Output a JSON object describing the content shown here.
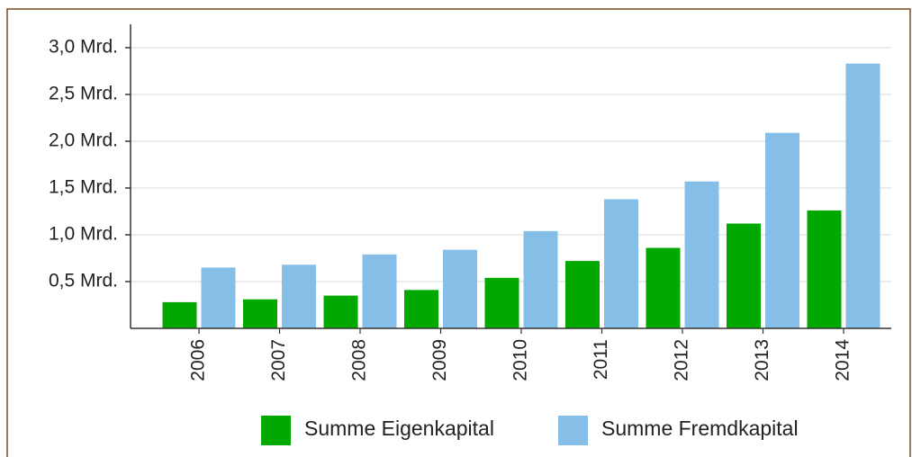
{
  "chart_data": {
    "type": "bar",
    "categories": [
      "2006",
      "2007",
      "2008",
      "2009",
      "2010",
      "2011",
      "2012",
      "2013",
      "2014"
    ],
    "series": [
      {
        "name": "Summe Eigenkapital",
        "color": "#00a800",
        "values": [
          0.28,
          0.31,
          0.35,
          0.41,
          0.54,
          0.72,
          0.86,
          1.12,
          1.26
        ]
      },
      {
        "name": "Summe Fremdkapital",
        "color": "#85bfe8",
        "values": [
          0.65,
          0.68,
          0.79,
          0.84,
          1.04,
          1.38,
          1.57,
          2.09,
          2.83
        ]
      }
    ],
    "ylim": [
      0,
      3.25
    ],
    "yticks": [
      {
        "value": 0.5,
        "label": "0,5 Mrd."
      },
      {
        "value": 1.0,
        "label": "1,0 Mrd."
      },
      {
        "value": 1.5,
        "label": "1,5 Mrd."
      },
      {
        "value": 2.0,
        "label": "2,0 Mrd."
      },
      {
        "value": 2.5,
        "label": "2,5 Mrd."
      },
      {
        "value": 3.0,
        "label": "3,0 Mrd."
      }
    ],
    "grid": true,
    "legend": "bottom"
  }
}
